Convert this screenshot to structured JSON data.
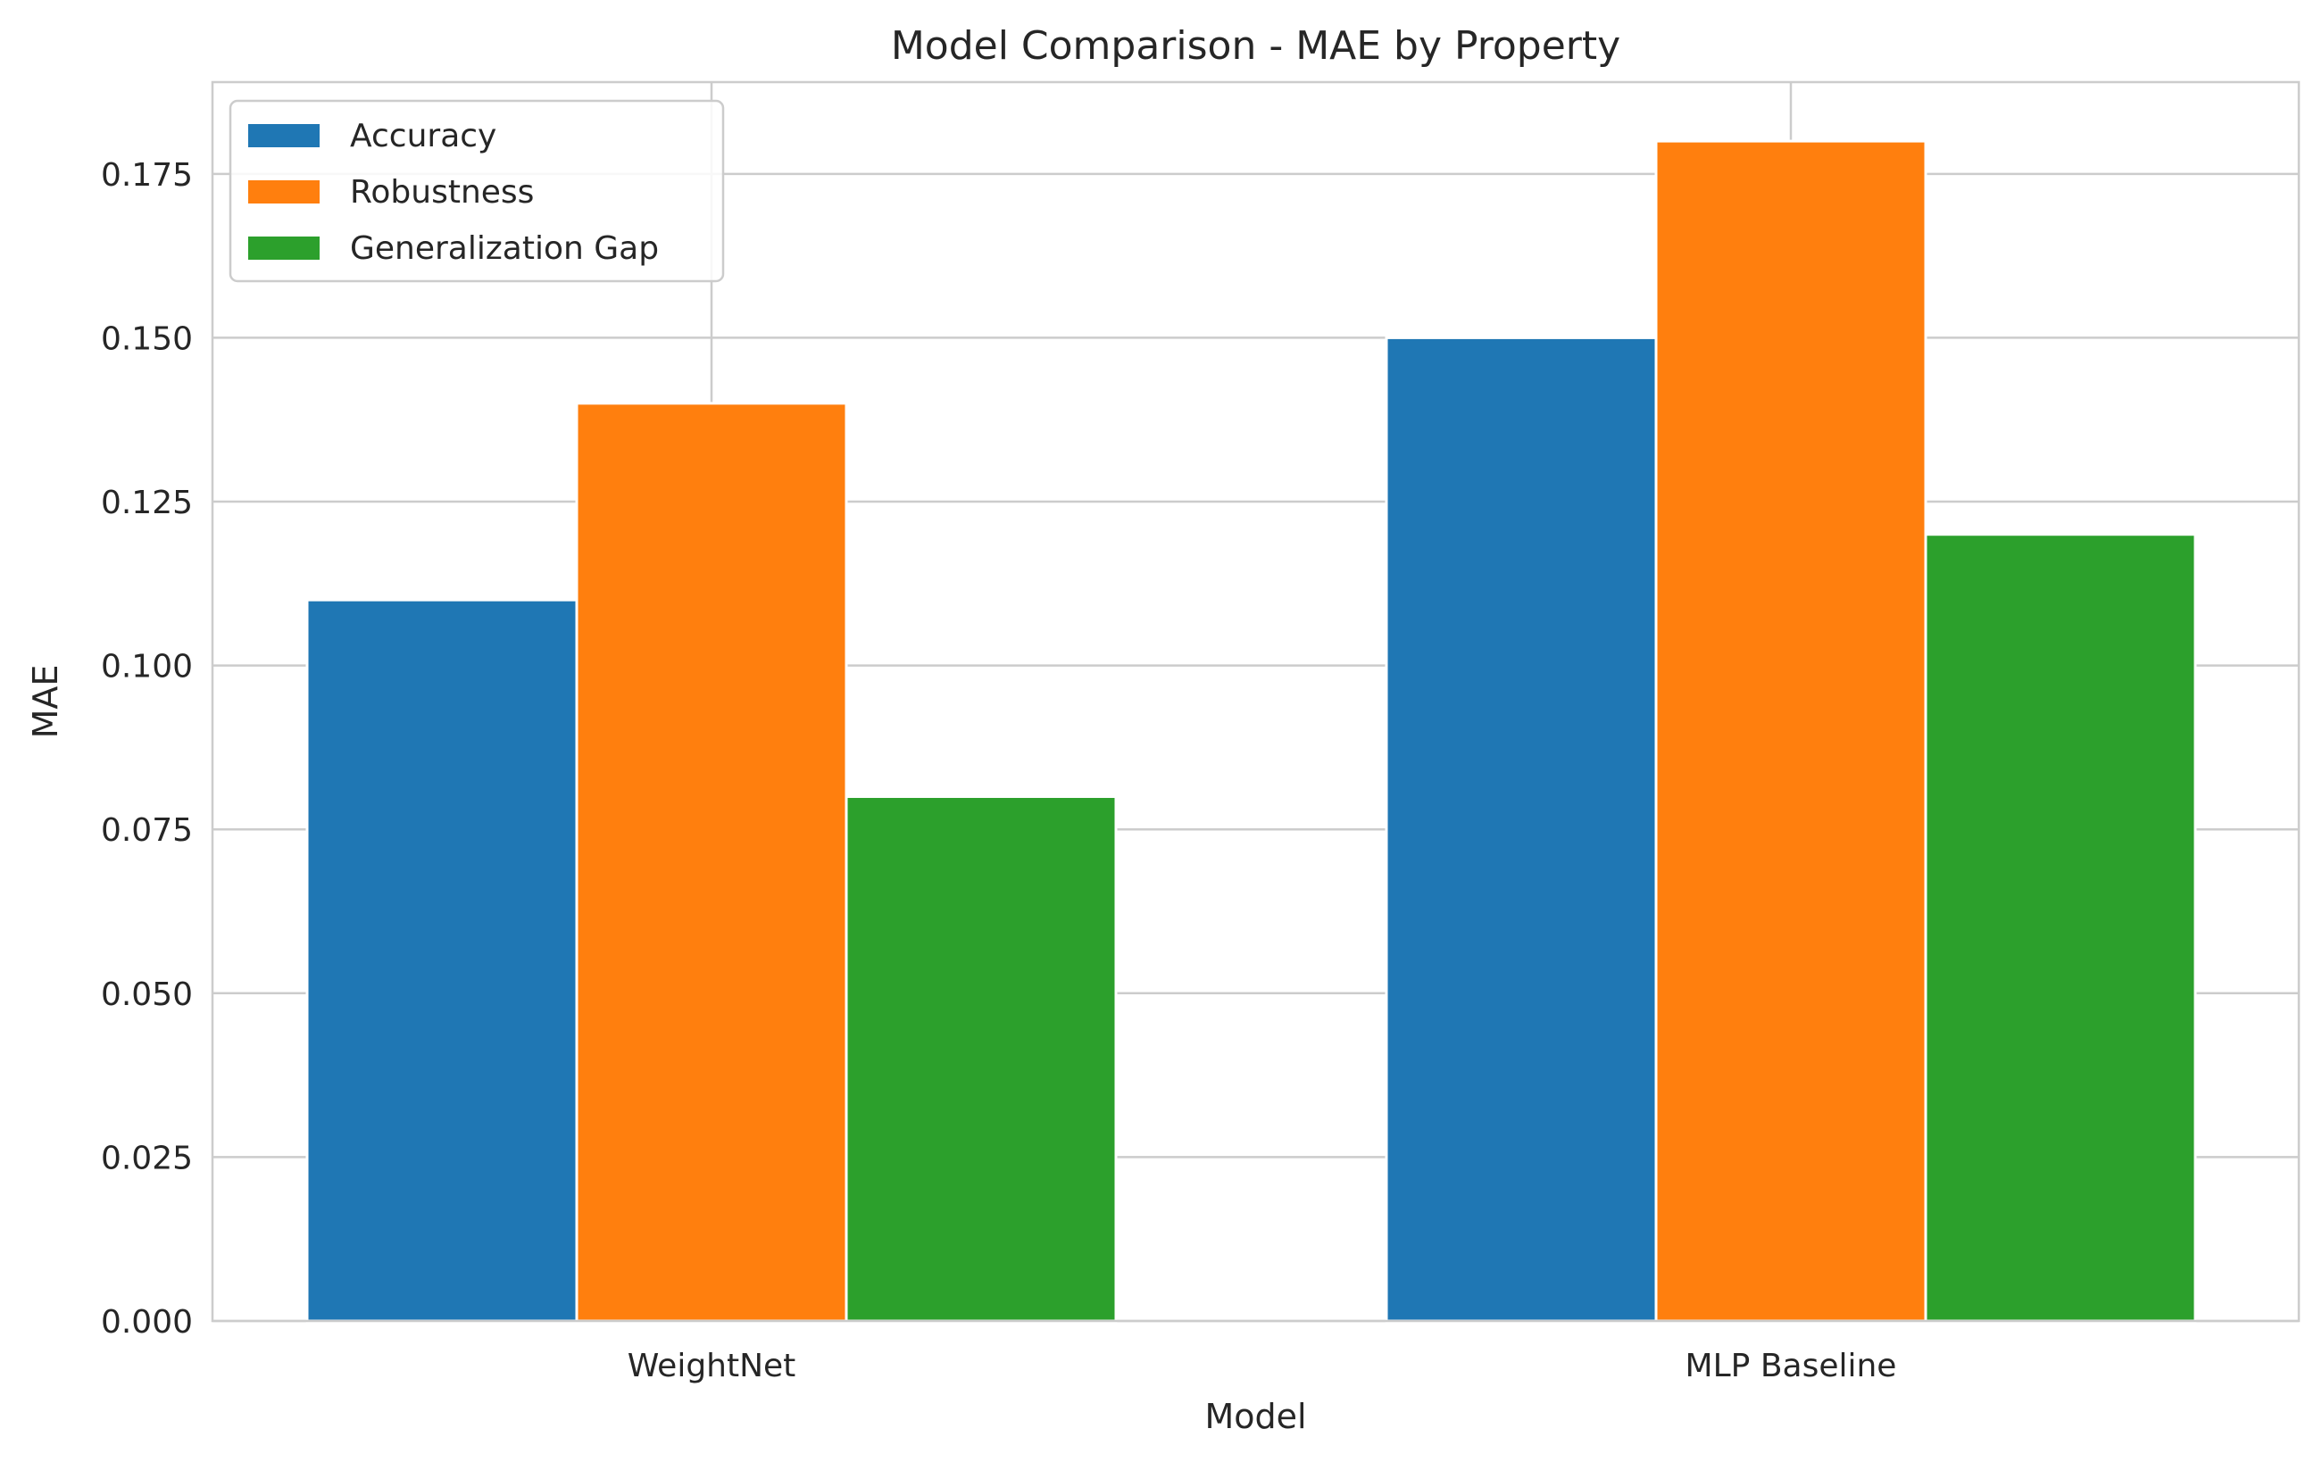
{
  "chart_data": {
    "type": "bar",
    "title": "Model Comparison - MAE by Property",
    "xlabel": "Model",
    "ylabel": "MAE",
    "categories": [
      "WeightNet",
      "MLP Baseline"
    ],
    "series": [
      {
        "name": "Accuracy",
        "values": [
          0.11,
          0.15
        ],
        "color": "#1f77b4"
      },
      {
        "name": "Robustness",
        "values": [
          0.14,
          0.18
        ],
        "color": "#ff7f0e"
      },
      {
        "name": "Generalization Gap",
        "values": [
          0.08,
          0.12
        ],
        "color": "#2ca02c"
      }
    ],
    "ylim": [
      0,
      0.189
    ],
    "yticks": [
      "0.000",
      "0.025",
      "0.050",
      "0.075",
      "0.100",
      "0.125",
      "0.150",
      "0.175"
    ],
    "grid": true,
    "legend_position": "top-left"
  }
}
